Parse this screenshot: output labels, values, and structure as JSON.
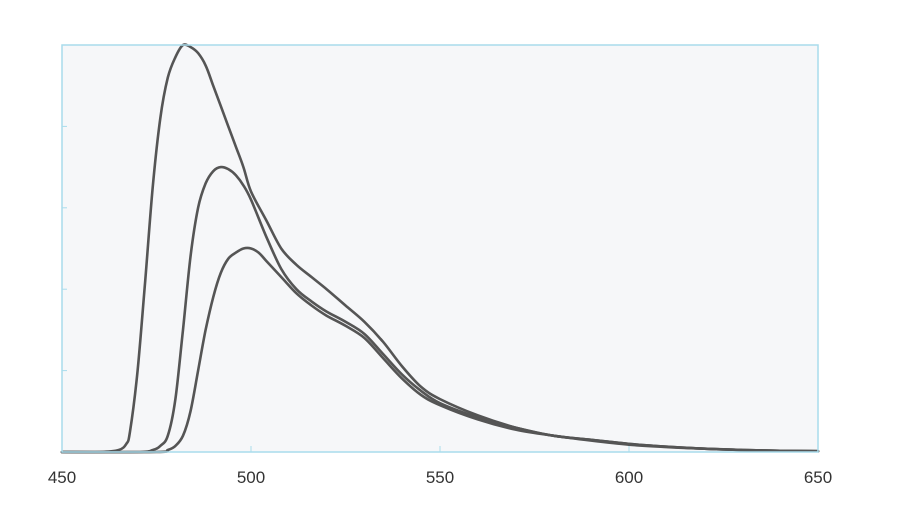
{
  "chart_data": {
    "type": "line",
    "title": "",
    "xlabel": "",
    "ylabel": "",
    "xlim": [
      450,
      650
    ],
    "ylim": [
      0,
      1
    ],
    "x_ticks": [
      "450",
      "500",
      "550",
      "600",
      "650"
    ],
    "x_tick_values": [
      450,
      500,
      550,
      600,
      650
    ],
    "y_tick_values": [
      0,
      0.2,
      0.4,
      0.6,
      0.8,
      1.0
    ],
    "grid": false,
    "legend": "none",
    "colors": {
      "plot_background": "#f6f7f9",
      "frame": "#a9dcec",
      "line": "#555555",
      "tick_text": "#333333"
    },
    "series": [
      {
        "x": [
          450,
          460,
          465,
          467,
          468,
          470,
          472,
          474,
          476,
          478,
          480,
          482,
          484,
          486,
          488,
          490,
          492,
          494,
          496,
          498,
          500,
          504,
          508,
          512,
          516,
          520,
          525,
          530,
          535,
          540,
          545,
          550,
          560,
          570,
          580,
          590,
          600,
          610,
          620,
          630,
          640,
          650
        ],
        "values": [
          0,
          0,
          0.005,
          0.02,
          0.05,
          0.2,
          0.42,
          0.65,
          0.82,
          0.92,
          0.97,
          1.0,
          0.995,
          0.98,
          0.95,
          0.9,
          0.85,
          0.8,
          0.75,
          0.7,
          0.64,
          0.57,
          0.5,
          0.46,
          0.43,
          0.4,
          0.36,
          0.32,
          0.27,
          0.21,
          0.16,
          0.13,
          0.09,
          0.06,
          0.04,
          0.03,
          0.02,
          0.013,
          0.008,
          0.005,
          0.003,
          0.002
        ]
      },
      {
        "x": [
          450,
          470,
          474,
          476,
          478,
          480,
          482,
          484,
          486,
          488,
          490,
          492,
          494,
          496,
          498,
          500,
          504,
          508,
          512,
          516,
          520,
          525,
          530,
          535,
          540,
          545,
          550,
          560,
          570,
          580,
          590,
          600,
          610,
          620,
          630,
          640,
          650
        ],
        "values": [
          0,
          0,
          0.005,
          0.015,
          0.04,
          0.13,
          0.3,
          0.48,
          0.6,
          0.66,
          0.69,
          0.7,
          0.695,
          0.68,
          0.655,
          0.62,
          0.53,
          0.45,
          0.4,
          0.37,
          0.345,
          0.32,
          0.29,
          0.24,
          0.19,
          0.15,
          0.12,
          0.085,
          0.06,
          0.04,
          0.03,
          0.02,
          0.013,
          0.008,
          0.005,
          0.003,
          0.002
        ]
      },
      {
        "x": [
          450,
          475,
          478,
          480,
          482,
          484,
          486,
          488,
          490,
          492,
          494,
          496,
          498,
          500,
          502,
          504,
          508,
          512,
          516,
          520,
          525,
          530,
          535,
          540,
          545,
          550,
          560,
          570,
          580,
          590,
          600,
          610,
          620,
          630,
          640,
          650
        ],
        "values": [
          0,
          0,
          0.005,
          0.015,
          0.04,
          0.1,
          0.2,
          0.3,
          0.38,
          0.44,
          0.475,
          0.49,
          0.5,
          0.5,
          0.49,
          0.47,
          0.43,
          0.39,
          0.36,
          0.335,
          0.31,
          0.28,
          0.23,
          0.18,
          0.14,
          0.115,
          0.08,
          0.055,
          0.04,
          0.028,
          0.018,
          0.012,
          0.008,
          0.005,
          0.003,
          0.002
        ]
      }
    ]
  }
}
